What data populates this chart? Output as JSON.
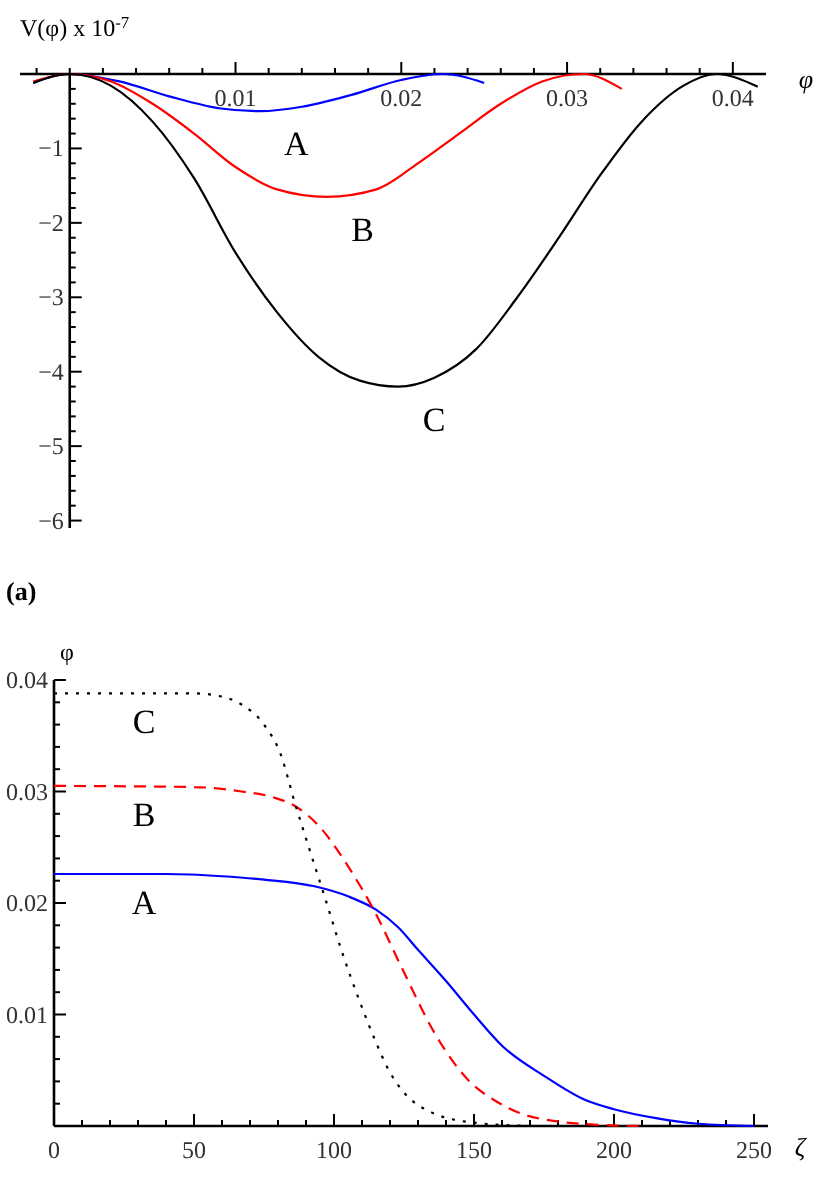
{
  "chart_data": [
    {
      "type": "line",
      "ylabel": "V(φ) x 10$^{-7}$",
      "xlabel": "φ",
      "marker": "none",
      "grid": false,
      "xlim": [
        -0.003,
        0.042
      ],
      "ylim": [
        -6.1,
        0
      ],
      "xticks": [
        {
          "value": -0.002,
          "label": null
        },
        {
          "value": 0,
          "label": null
        },
        {
          "value": 0.002,
          "label": null
        },
        {
          "value": 0.004,
          "label": null
        },
        {
          "value": 0.006,
          "label": null
        },
        {
          "value": 0.008,
          "label": null
        },
        0.01,
        {
          "value": 0.012,
          "label": null
        },
        {
          "value": 0.014,
          "label": null
        },
        {
          "value": 0.016,
          "label": null
        },
        {
          "value": 0.018,
          "label": null
        },
        0.02,
        {
          "value": 0.022,
          "label": null
        },
        {
          "value": 0.024,
          "label": null
        },
        {
          "value": 0.026,
          "label": null
        },
        {
          "value": 0.028,
          "label": null
        },
        0.03,
        {
          "value": 0.032,
          "label": null
        },
        {
          "value": 0.034,
          "label": null
        },
        {
          "value": 0.036,
          "label": null
        },
        {
          "value": 0.038,
          "label": null
        },
        0.04
      ],
      "yticks": [
        {
          "value": 0,
          "label": null
        },
        {
          "value": -0.2,
          "label": null
        },
        {
          "value": -0.4,
          "label": null
        },
        {
          "value": -0.6,
          "label": null
        },
        {
          "value": -0.8,
          "label": null
        },
        {
          "value": -1,
          "label": "−1"
        },
        {
          "value": -1.2,
          "label": null
        },
        {
          "value": -1.4,
          "label": null
        },
        {
          "value": -1.6,
          "label": null
        },
        {
          "value": -1.8,
          "label": null
        },
        {
          "value": -2,
          "label": "−2"
        },
        {
          "value": -2.2,
          "label": null
        },
        {
          "value": -2.4,
          "label": null
        },
        {
          "value": -2.6,
          "label": null
        },
        {
          "value": -2.8,
          "label": null
        },
        {
          "value": -3,
          "label": "−3"
        },
        {
          "value": -3.2,
          "label": null
        },
        {
          "value": -3.4,
          "label": null
        },
        {
          "value": -3.6,
          "label": null
        },
        {
          "value": -3.8,
          "label": null
        },
        {
          "value": -4,
          "label": "−4"
        },
        {
          "value": -4.2,
          "label": null
        },
        {
          "value": -4.4,
          "label": null
        },
        {
          "value": -4.6,
          "label": null
        },
        {
          "value": -4.8,
          "label": null
        },
        {
          "value": -5,
          "label": "−5"
        },
        {
          "value": -5.2,
          "label": null
        },
        {
          "value": -5.4,
          "label": null
        },
        {
          "value": -5.6,
          "label": null
        },
        {
          "value": -5.8,
          "label": null
        },
        {
          "value": -6,
          "label": "−6"
        }
      ],
      "series": [
        {
          "name": "A",
          "color": "#0000ff",
          "line_style": "solid",
          "x": [
            -0.0022,
            0,
            0.003,
            0.006,
            0.009,
            0.0115,
            0.014,
            0.017,
            0.02,
            0.0225,
            0.025
          ],
          "values": [
            -0.12,
            0,
            -0.1,
            -0.3,
            -0.46,
            -0.5,
            -0.44,
            -0.28,
            -0.08,
            0,
            -0.12
          ]
        },
        {
          "name": "B",
          "color": "#ff0000",
          "line_style": "solid",
          "x": [
            -0.0022,
            0,
            0.0025,
            0.005,
            0.0075,
            0.01,
            0.0125,
            0.0155,
            0.0185,
            0.021,
            0.0235,
            0.026,
            0.0285,
            0.031,
            0.0333
          ],
          "values": [
            -0.1,
            0,
            -0.1,
            -0.4,
            -0.8,
            -1.25,
            -1.55,
            -1.65,
            -1.55,
            -1.2,
            -0.8,
            -0.4,
            -0.1,
            0,
            -0.2
          ]
        },
        {
          "name": "C",
          "color": "#000000",
          "line_style": "solid",
          "x": [
            -0.0022,
            0,
            0.0025,
            0.005,
            0.0075,
            0.01,
            0.0125,
            0.015,
            0.0175,
            0.0198,
            0.022,
            0.0245,
            0.027,
            0.0295,
            0.032,
            0.0345,
            0.037,
            0.039,
            0.0415
          ],
          "values": [
            -0.12,
            0,
            -0.16,
            -0.64,
            -1.4,
            -2.4,
            -3.2,
            -3.8,
            -4.12,
            -4.2,
            -4.08,
            -3.7,
            -3.0,
            -2.2,
            -1.36,
            -0.64,
            -0.16,
            0,
            -0.17
          ]
        }
      ],
      "annotations": [
        "(a)"
      ]
    },
    {
      "type": "line",
      "ylabel": "φ",
      "xlabel": "ζ",
      "marker": "none",
      "grid": false,
      "xlim": [
        0,
        255
      ],
      "ylim": [
        0,
        0.04
      ],
      "xticks": [
        0,
        {
          "value": 10,
          "label": null
        },
        {
          "value": 20,
          "label": null
        },
        {
          "value": 30,
          "label": null
        },
        {
          "value": 40,
          "label": null
        },
        50,
        {
          "value": 60,
          "label": null
        },
        {
          "value": 70,
          "label": null
        },
        {
          "value": 80,
          "label": null
        },
        {
          "value": 90,
          "label": null
        },
        100,
        {
          "value": 110,
          "label": null
        },
        {
          "value": 120,
          "label": null
        },
        {
          "value": 130,
          "label": null
        },
        {
          "value": 140,
          "label": null
        },
        150,
        {
          "value": 160,
          "label": null
        },
        {
          "value": 170,
          "label": null
        },
        {
          "value": 180,
          "label": null
        },
        {
          "value": 190,
          "label": null
        },
        200,
        {
          "value": 210,
          "label": null
        },
        {
          "value": 220,
          "label": null
        },
        {
          "value": 230,
          "label": null
        },
        {
          "value": 240,
          "label": null
        },
        250
      ],
      "yticks": [
        {
          "value": 0.002,
          "label": null
        },
        {
          "value": 0.004,
          "label": null
        },
        {
          "value": 0.006,
          "label": null
        },
        {
          "value": 0.008,
          "label": null
        },
        0.01,
        {
          "value": 0.012,
          "label": null
        },
        {
          "value": 0.014,
          "label": null
        },
        {
          "value": 0.016,
          "label": null
        },
        {
          "value": 0.018,
          "label": null
        },
        0.02,
        {
          "value": 0.022,
          "label": null
        },
        {
          "value": 0.024,
          "label": null
        },
        {
          "value": 0.026,
          "label": null
        },
        {
          "value": 0.028,
          "label": null
        },
        0.03,
        {
          "value": 0.032,
          "label": null
        },
        {
          "value": 0.034,
          "label": null
        },
        {
          "value": 0.036,
          "label": null
        },
        {
          "value": 0.038,
          "label": null
        },
        0.04
      ],
      "series": [
        {
          "name": "A",
          "color": "#0000ff",
          "line_style": "solid",
          "x": [
            0,
            40,
            60,
            75,
            93,
            105,
            115,
            123,
            130,
            140,
            150,
            160,
            175,
            190,
            200,
            215,
            230,
            250
          ],
          "values": [
            0.0226,
            0.0226,
            0.0224,
            0.0221,
            0.0215,
            0.0206,
            0.0194,
            0.0178,
            0.0158,
            0.013,
            0.01,
            0.0072,
            0.0045,
            0.0023,
            0.0015,
            0.0007,
            0.0002,
            0
          ]
        },
        {
          "name": "B",
          "color": "#ff0000",
          "line_style": "dashed",
          "x": [
            0,
            50,
            67,
            78,
            86,
            95,
            105,
            115,
            124,
            136,
            148,
            158,
            167,
            180,
            195,
            210
          ],
          "values": [
            0.0305,
            0.0304,
            0.03,
            0.0295,
            0.0287,
            0.0268,
            0.0233,
            0.019,
            0.0143,
            0.0083,
            0.0041,
            0.0022,
            0.0011,
            0.0004,
            0.0001,
            0
          ]
        },
        {
          "name": "C",
          "color": "#000000",
          "line_style": "dotted",
          "x": [
            0,
            50,
            60,
            67,
            75,
            81,
            86,
            91,
            97,
            103,
            109,
            115,
            120,
            125,
            135,
            150,
            170
          ],
          "values": [
            0.0388,
            0.0388,
            0.0385,
            0.0378,
            0.036,
            0.0333,
            0.029,
            0.025,
            0.0203,
            0.0155,
            0.0113,
            0.0075,
            0.0048,
            0.003,
            0.0012,
            0.0003,
            0
          ]
        }
      ]
    }
  ]
}
